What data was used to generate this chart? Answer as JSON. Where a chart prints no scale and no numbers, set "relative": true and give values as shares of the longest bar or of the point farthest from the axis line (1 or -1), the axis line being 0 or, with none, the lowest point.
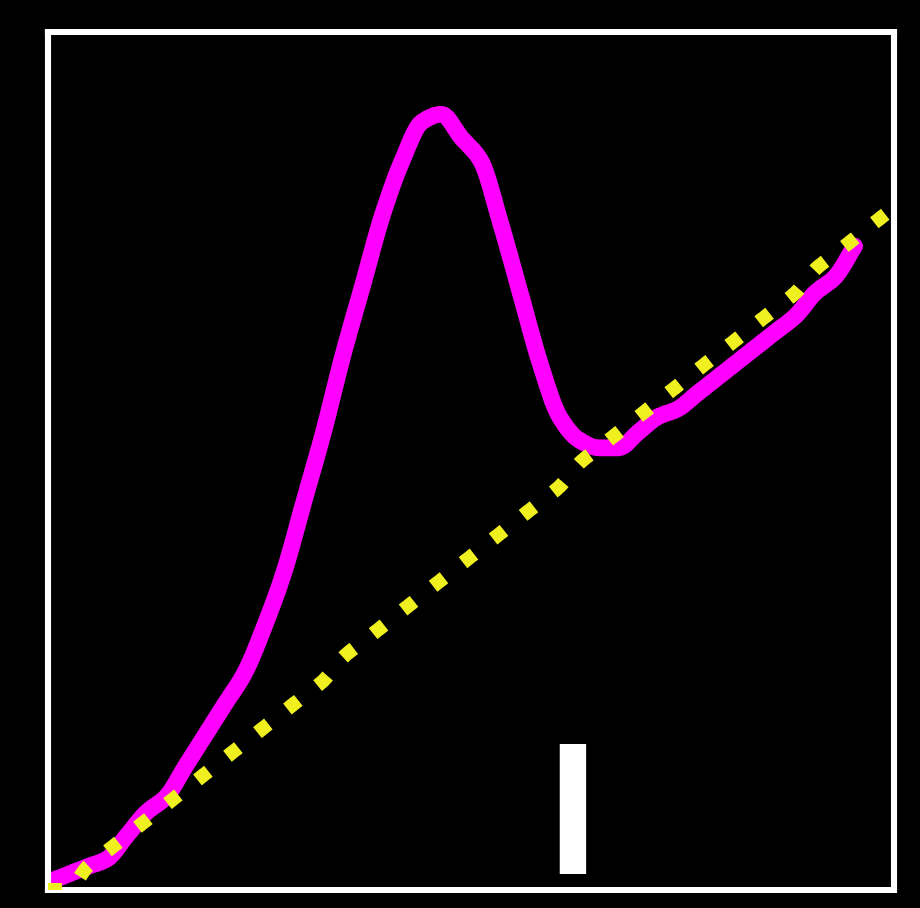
{
  "chart_data": {
    "type": "line",
    "relative": true,
    "categories": [
      null,
      null,
      null,
      null,
      null,
      null,
      null,
      null,
      null,
      null,
      null,
      null,
      null,
      null,
      null,
      null,
      null,
      null,
      null,
      null,
      null,
      null,
      null,
      null,
      null,
      null,
      null,
      null,
      null,
      null,
      null,
      null,
      null,
      null,
      null,
      null,
      null,
      null,
      null,
      null,
      null,
      null,
      null,
      null
    ],
    "series": [
      {
        "color": "#ff00ff",
        "line_style": "solid",
        "values": [
          0.01,
          0.02,
          0.03,
          0.04,
          0.07,
          0.1,
          0.12,
          0.16,
          0.2,
          0.24,
          0.28,
          0.34,
          0.41,
          0.5,
          0.59,
          0.69,
          0.78,
          0.87,
          0.94,
          0.99,
          1.0,
          0.97,
          0.94,
          0.86,
          0.77,
          0.68,
          0.61,
          0.58,
          0.57,
          0.57,
          0.59,
          0.61,
          0.62,
          0.64,
          0.66,
          0.68,
          0.7,
          0.72,
          0.74,
          0.77,
          0.79,
          0.83,
          null,
          null
        ]
      },
      {
        "color": "#f0f020",
        "line_style": "dotted",
        "values": [
          0.0,
          0.0,
          0.03,
          0.05,
          0.07,
          0.09,
          0.11,
          0.13,
          0.15,
          0.17,
          0.19,
          0.21,
          0.23,
          0.25,
          0.27,
          0.3,
          0.32,
          0.34,
          0.36,
          0.38,
          0.4,
          0.42,
          0.44,
          0.46,
          0.48,
          0.5,
          0.52,
          0.55,
          0.57,
          0.59,
          0.61,
          0.63,
          0.65,
          0.67,
          0.69,
          0.71,
          0.73,
          0.75,
          0.77,
          0.8,
          0.82,
          0.84,
          0.86,
          0.88
        ]
      }
    ]
  }
}
